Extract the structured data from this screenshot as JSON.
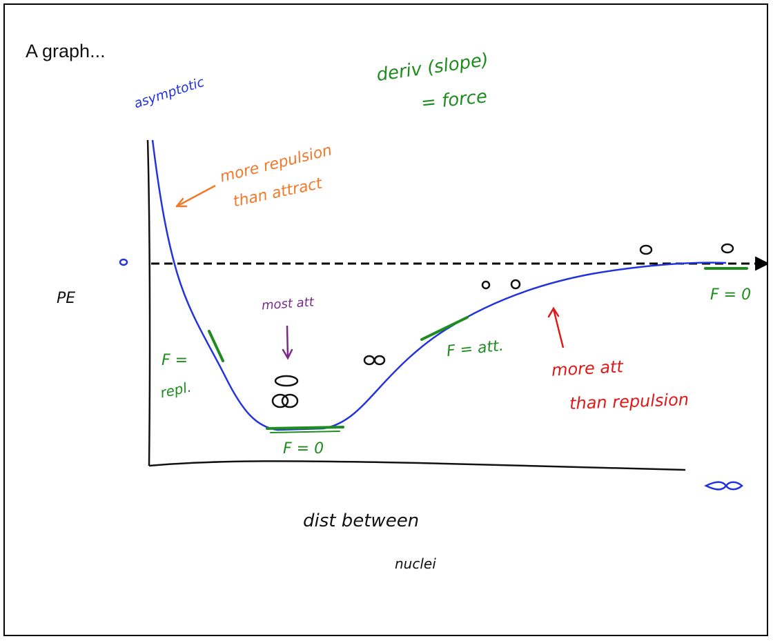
{
  "title": "A graph...",
  "colors": {
    "curve": "#2233dd",
    "axis": "#111111",
    "asymptote": "#000000",
    "green_note": "#1e8c1e",
    "orange_note": "#f07a2a",
    "purple_note": "#7a2a8a",
    "red_note": "#e01818",
    "blue_note": "#2233dd"
  },
  "annotations": {
    "asymptotic": "asymptotic",
    "deriv_line1": "deriv (slope)",
    "deriv_line2": "= force",
    "more_repulsion_line1": "more repulsion",
    "more_repulsion_line2": "than attract",
    "zero_left": "0",
    "pe_axis_label": "PE",
    "most_att": "most att",
    "f_repl_line1": "F =",
    "f_repl_line2": "repl.",
    "f_zero_bottom": "F = 0",
    "f_att": "F = att.",
    "f_zero_right": "F = 0",
    "more_att_line1": "more att",
    "more_att_line2": "than repulsion",
    "x_axis_line1": "dist between",
    "x_axis_line2": "nuclei",
    "zero_far_1": "0",
    "zero_far_2": "0",
    "infinity": "∞"
  }
}
